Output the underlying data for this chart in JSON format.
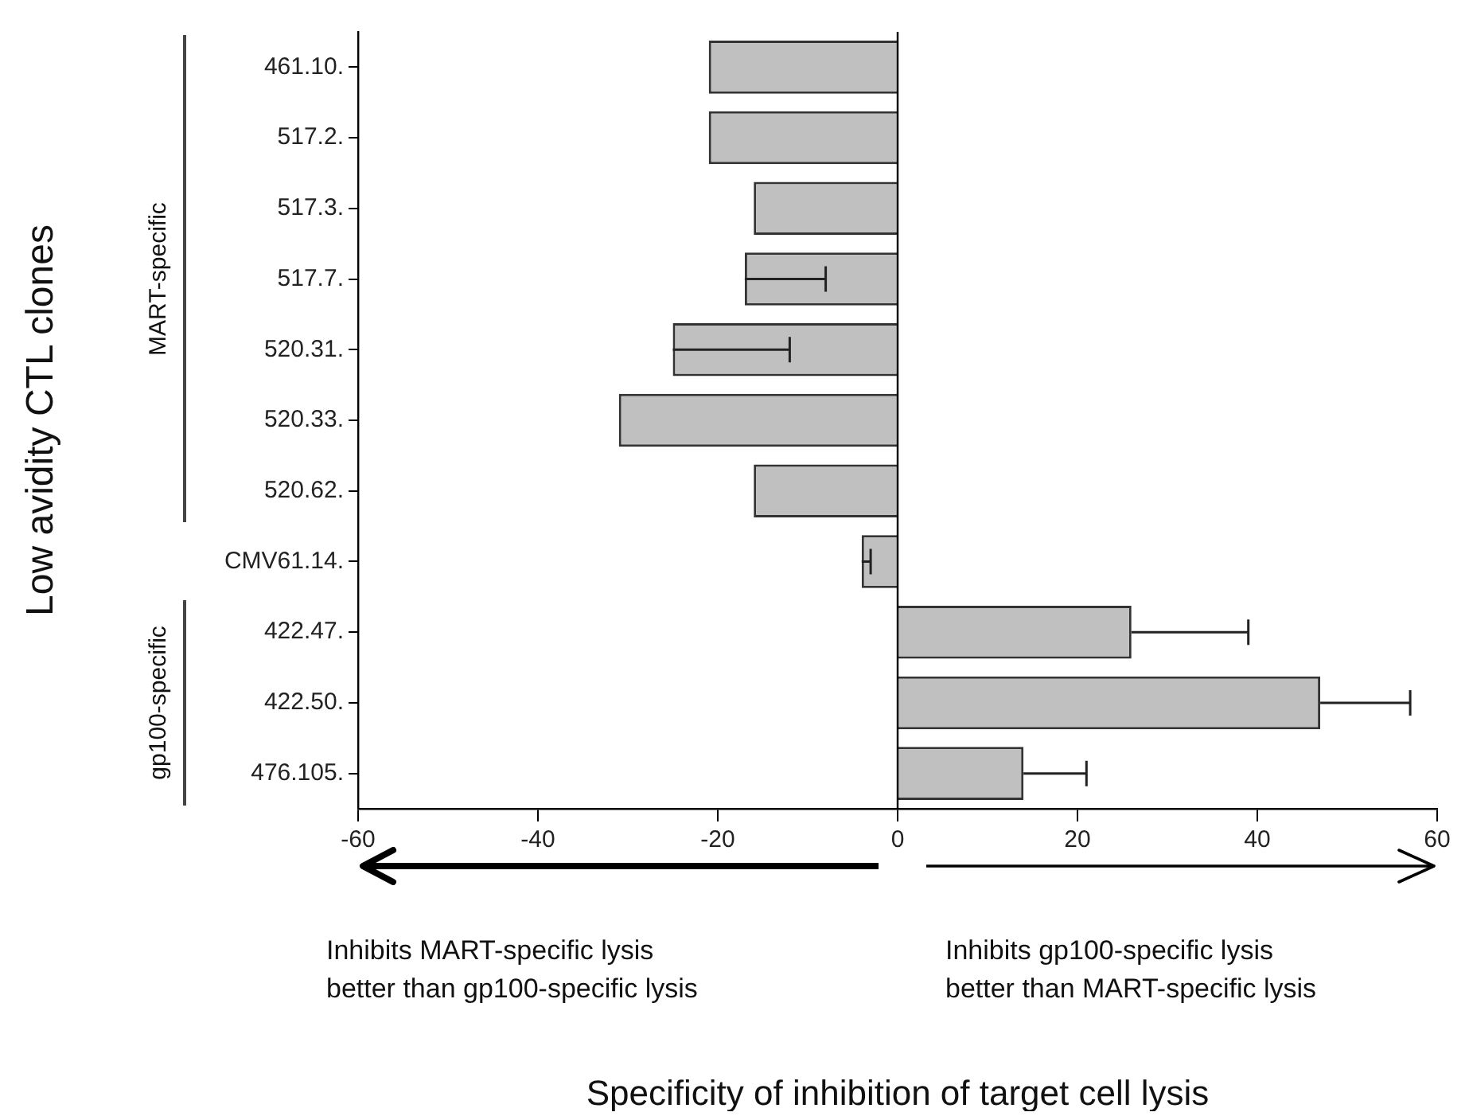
{
  "chart_data": {
    "type": "bar",
    "orientation": "horizontal",
    "ylabel": "Low avidity CTL clones",
    "categories": [
      "461.10.",
      "517.2.",
      "517.3.",
      "517.7.",
      "520.31.",
      "520.33.",
      "520.62.",
      "CMV61.14.",
      "422.47.",
      "422.50.",
      "476.105."
    ],
    "values": [
      -21,
      -21,
      -16,
      -17,
      -25,
      -31,
      -16,
      -4,
      26,
      47,
      14
    ],
    "errors": [
      null,
      null,
      null,
      [
        -17,
        -8
      ],
      [
        -25,
        -12
      ],
      null,
      null,
      [
        -4,
        -3
      ],
      [
        26,
        39
      ],
      [
        47,
        57
      ],
      [
        14,
        21
      ]
    ],
    "color": "#c0c0c0",
    "xlim": [
      -60,
      60
    ],
    "xticks": [
      -60,
      -40,
      -20,
      0,
      20,
      40,
      60
    ],
    "ref_lines": [
      {
        "axis": "x",
        "value": 0,
        "color": "#000000"
      }
    ],
    "annotations": [
      "MART-specific",
      "gp100-specific",
      "Inhibits MART-specific lysis\nbetter than gp100-specific lysis",
      "Inhibits gp100-specific lysis\nbetter than MART-specific lysis",
      "Specificity of inhibition of target cell lysis"
    ],
    "grid": false,
    "legend": false
  }
}
